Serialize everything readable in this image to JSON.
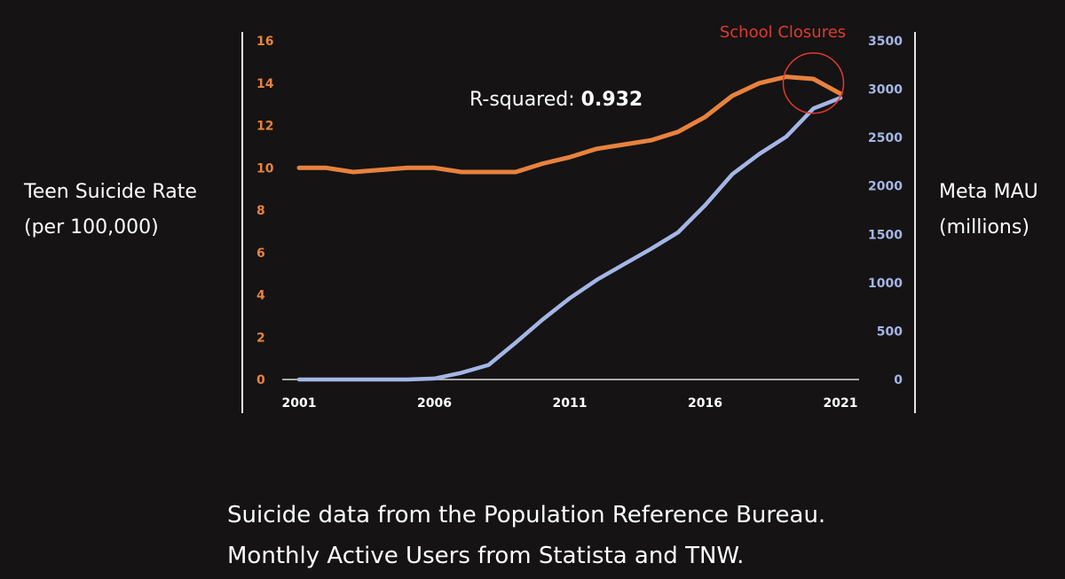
{
  "chart_data": {
    "type": "line",
    "x": [
      2001,
      2002,
      2003,
      2004,
      2005,
      2006,
      2007,
      2008,
      2009,
      2010,
      2011,
      2012,
      2013,
      2014,
      2015,
      2016,
      2017,
      2018,
      2019,
      2020,
      2021
    ],
    "x_ticks": [
      "2001",
      "2006",
      "2011",
      "2016",
      "2021"
    ],
    "y_left_ticks": [
      "0",
      "2",
      "4",
      "6",
      "8",
      "10",
      "12",
      "14",
      "16"
    ],
    "y_right_ticks": [
      "0",
      "500",
      "1000",
      "1500",
      "2000",
      "2500",
      "3000",
      "3500"
    ],
    "y_left_lim": [
      0,
      16
    ],
    "y_right_lim": [
      0,
      3500
    ],
    "y_left_label": [
      "Teen Suicide Rate",
      "(per 100,000)"
    ],
    "y_right_label": [
      "Meta MAU",
      "(millions)"
    ],
    "series": [
      {
        "axis": "left",
        "color": "#e8823e",
        "values": [
          10.0,
          10.0,
          9.8,
          9.9,
          10.0,
          10.0,
          9.8,
          9.8,
          9.8,
          10.2,
          10.5,
          10.9,
          11.1,
          11.3,
          11.7,
          12.4,
          13.4,
          14.0,
          14.3,
          14.2,
          13.5
        ]
      },
      {
        "axis": "right",
        "color": "#a4b6e6",
        "values": [
          0,
          0,
          0,
          0,
          0,
          10,
          70,
          150,
          380,
          620,
          840,
          1030,
          1190,
          1350,
          1520,
          1800,
          2120,
          2330,
          2510,
          2800,
          2910
        ]
      }
    ],
    "annotations": {
      "r_squared_label": "R-squared: ",
      "r_squared_value": "0.932",
      "highlight_label": "School Closures",
      "highlight_color": "#e03a2e"
    },
    "grid": false
  },
  "footnotes": [
    "Suicide data from the Population Reference Bureau.",
    "Monthly Active Users from Statista and TNW."
  ]
}
